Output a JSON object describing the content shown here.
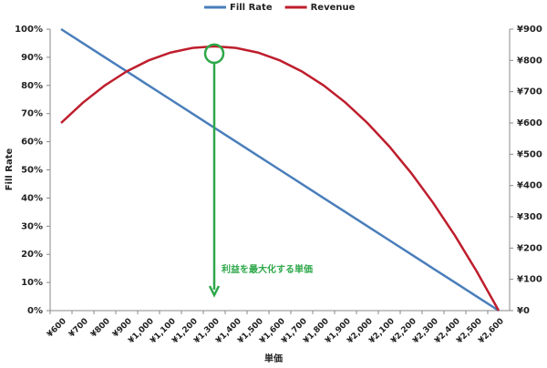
{
  "chart_data": {
    "type": "line",
    "x_label": "単価",
    "y_label": "Fill Rate",
    "categories": [
      "¥600",
      "¥700",
      "¥800",
      "¥900",
      "¥1,000",
      "¥1,100",
      "¥1,200",
      "¥1,300",
      "¥1,400",
      "¥1,500",
      "¥1,600",
      "¥1,700",
      "¥1,800",
      "¥1,900",
      "¥2,000",
      "¥2,100",
      "¥2,200",
      "¥2,300",
      "¥2,400",
      "¥2,500",
      "¥2,600"
    ],
    "series": [
      {
        "name": "Fill Rate",
        "color": "#4a7ebb",
        "values": [
          100,
          95,
          90,
          85,
          80,
          75,
          70,
          65,
          60,
          55,
          50,
          45,
          40,
          35,
          30,
          25,
          20,
          15,
          10,
          5,
          0
        ]
      },
      {
        "name": "Revenue",
        "color": "#be1e2d",
        "axis": "y2",
        "values": [
          600,
          665,
          720,
          765,
          800,
          825,
          840,
          845,
          840,
          825,
          800,
          765,
          720,
          665,
          600,
          525,
          440,
          345,
          240,
          125,
          0
        ]
      }
    ],
    "ylim": [
      0,
      100
    ],
    "yticks": [
      {
        "value": 0,
        "label": "0%"
      },
      {
        "value": 10,
        "label": "10%"
      },
      {
        "value": 20,
        "label": "20%"
      },
      {
        "value": 30,
        "label": "30%"
      },
      {
        "value": 40,
        "label": "40%"
      },
      {
        "value": 50,
        "label": "50%"
      },
      {
        "value": 60,
        "label": "60%"
      },
      {
        "value": 70,
        "label": "70%"
      },
      {
        "value": 80,
        "label": "80%"
      },
      {
        "value": 90,
        "label": "90%"
      },
      {
        "value": 100,
        "label": "100%"
      }
    ],
    "y2lim": [
      0,
      900
    ],
    "y2ticks": [
      {
        "value": 0,
        "label": "¥0"
      },
      {
        "value": 100,
        "label": "¥100"
      },
      {
        "value": 200,
        "label": "¥200"
      },
      {
        "value": 300,
        "label": "¥300"
      },
      {
        "value": 400,
        "label": "¥400"
      },
      {
        "value": 500,
        "label": "¥500"
      },
      {
        "value": 600,
        "label": "¥600"
      },
      {
        "value": 700,
        "label": "¥700"
      },
      {
        "value": 800,
        "label": "¥800"
      },
      {
        "value": 900,
        "label": "¥900"
      }
    ],
    "legend": "top",
    "annotation": {
      "text": "利益を最大化する単価",
      "color": "#2ea84a"
    }
  }
}
